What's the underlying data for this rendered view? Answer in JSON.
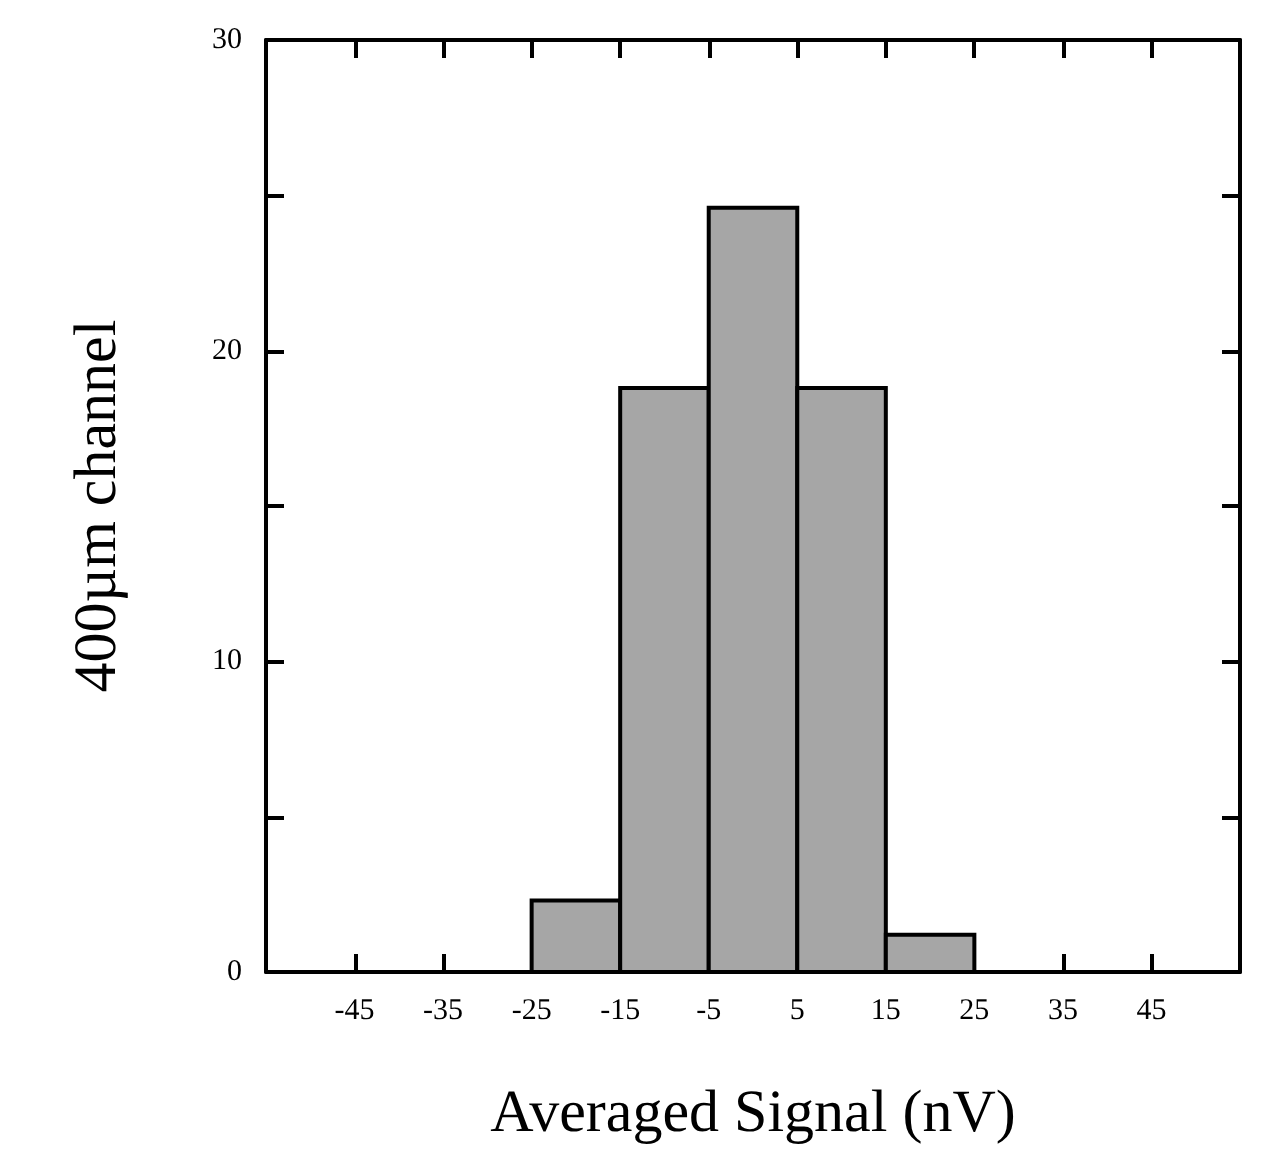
{
  "chart_data": {
    "type": "histogram",
    "xlabel": "Averaged Signal (nV)",
    "ylabel": "400µm channel",
    "bins": [
      -25,
      -15,
      -5,
      5,
      15,
      25
    ],
    "values": [
      2.3,
      18.8,
      24.6,
      18.8,
      1.2
    ],
    "color": "#a6a6a6",
    "xlim": [
      -55,
      55
    ],
    "xticks": [
      -45,
      -35,
      -25,
      -15,
      -5,
      5,
      15,
      25,
      35,
      45
    ],
    "ylim": [
      0,
      30
    ],
    "yticks": [
      0,
      {
        "value": 5,
        "label": null
      },
      10,
      {
        "value": 15,
        "label": null
      },
      20,
      {
        "value": 25,
        "label": null
      },
      30
    ],
    "grid": false
  }
}
